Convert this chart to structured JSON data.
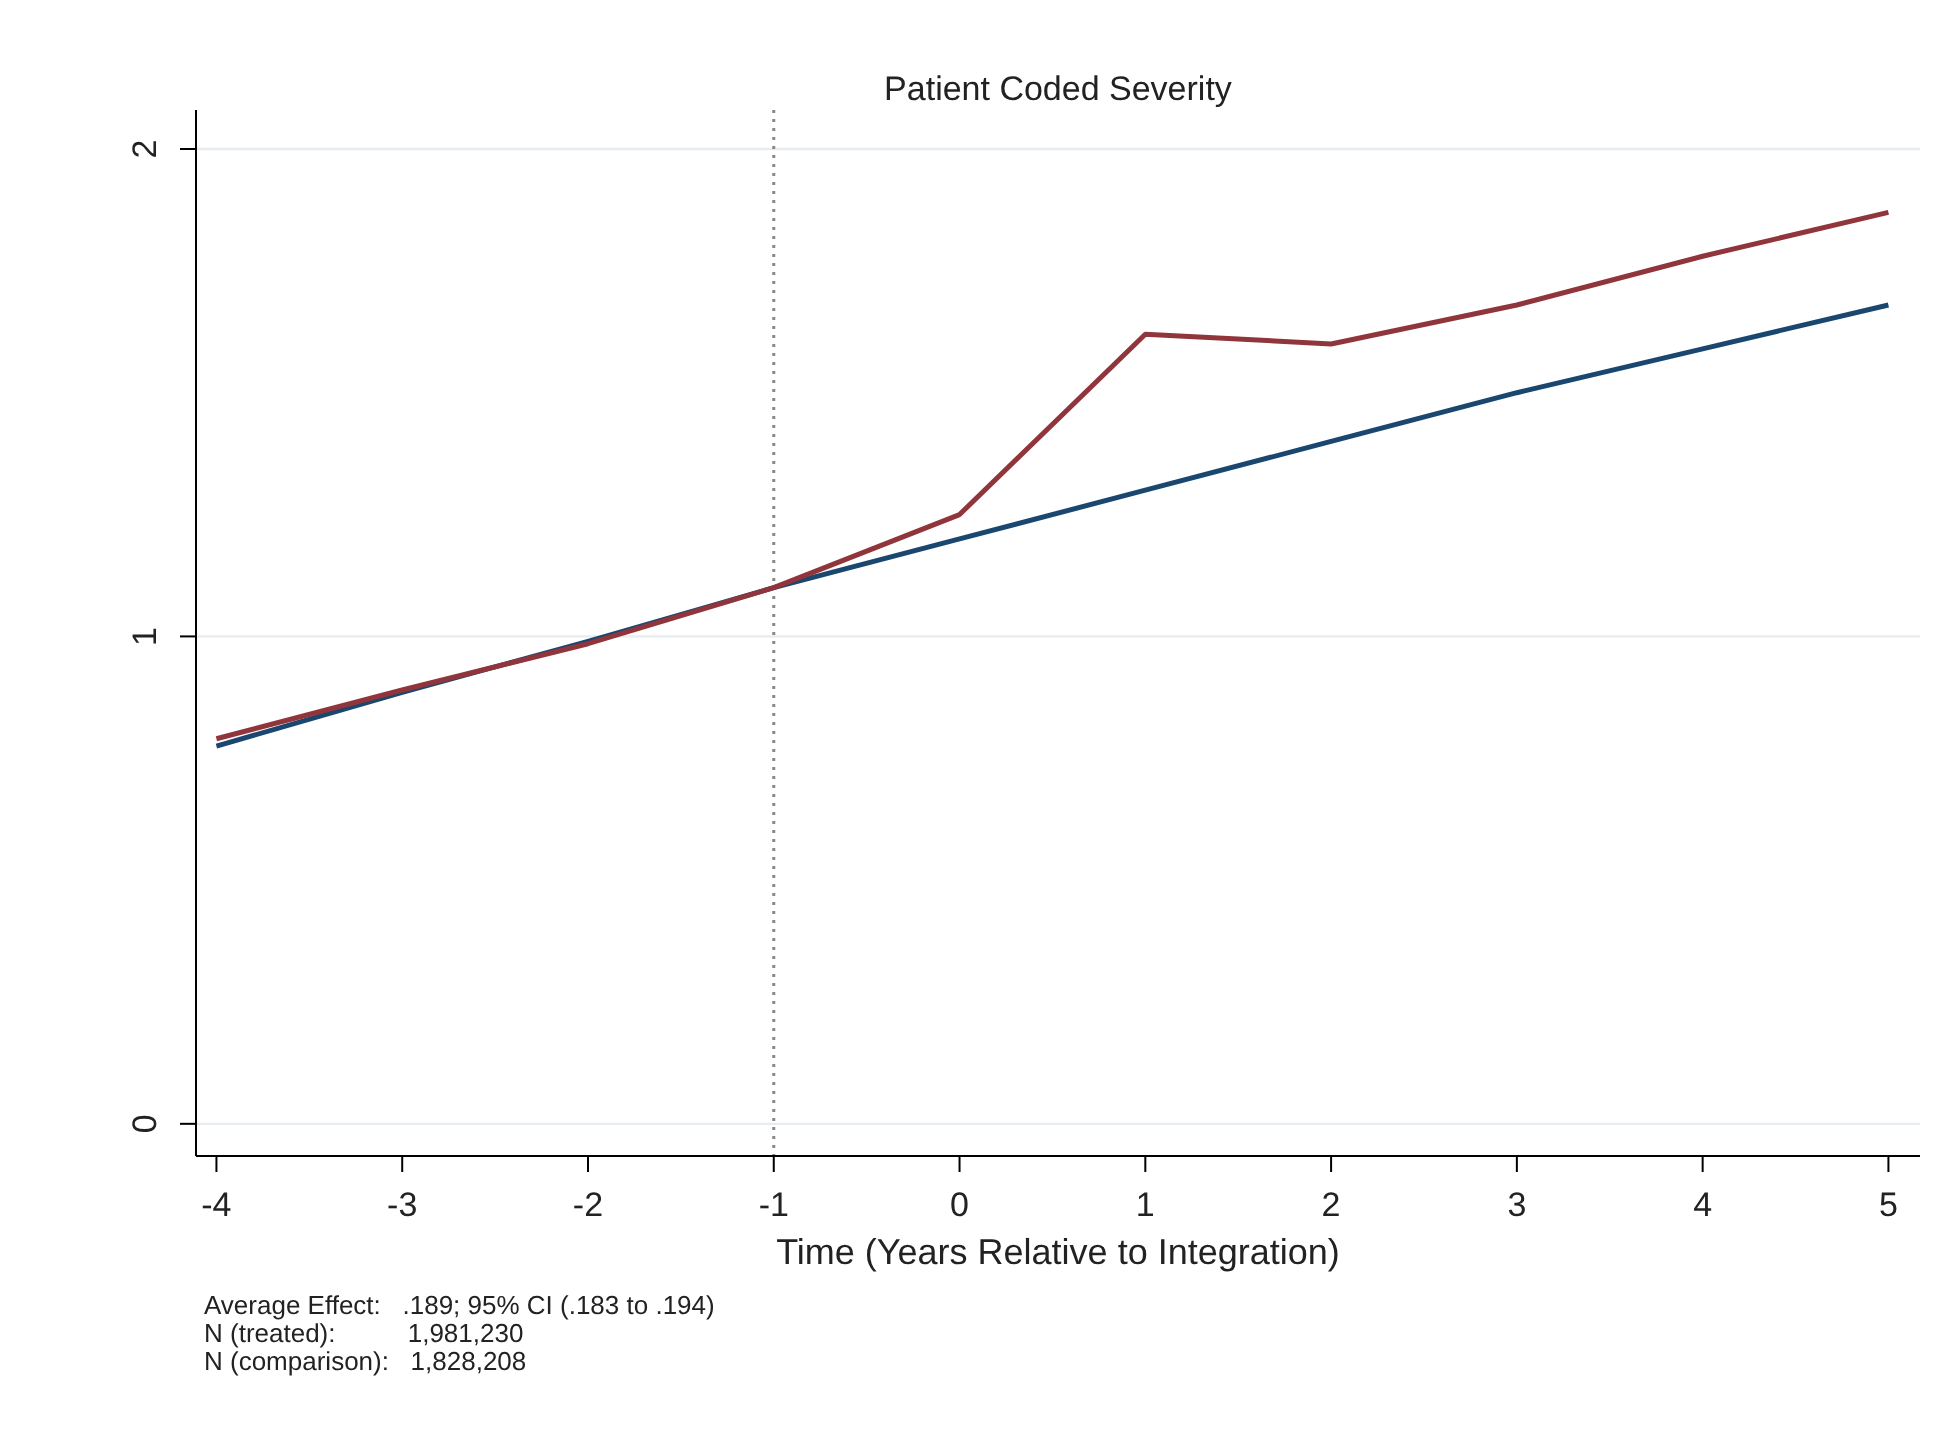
{
  "chart_data": {
    "type": "line",
    "title": "Patient Coded Severity",
    "xlabel": "Time (Years Relative to Integration)",
    "x": [
      -4,
      -3,
      -2,
      -1,
      0,
      1,
      2,
      3,
      4,
      5
    ],
    "series": [
      {
        "color": "#1a476f",
        "values": [
          0.775,
          0.885,
          0.99,
          1.1,
          1.2,
          1.3,
          1.4,
          1.5,
          1.59,
          1.68
        ]
      },
      {
        "color": "#90353b",
        "values": [
          0.79,
          0.89,
          0.985,
          1.1,
          1.25,
          1.62,
          1.6,
          1.68,
          1.78,
          1.87
        ]
      }
    ],
    "xlim": [
      -4.11,
      5.17
    ],
    "ylim": [
      -0.066,
      2.08
    ],
    "xticks": [
      -4,
      -3,
      -2,
      -1,
      0,
      1,
      2,
      3,
      4,
      5
    ],
    "yticks": [
      0,
      1,
      2
    ],
    "grid": "y",
    "marker": "none",
    "line_style": "solid",
    "ref_lines": [
      {
        "axis": "x",
        "value": -1,
        "color": "#888888",
        "line_style": "dotted"
      }
    ],
    "annotations": [
      "Average Effect:   .189; 95% CI (.183 to .194)",
      "N (treated):          1,981,230",
      "N (comparison):   1,828,208"
    ]
  }
}
